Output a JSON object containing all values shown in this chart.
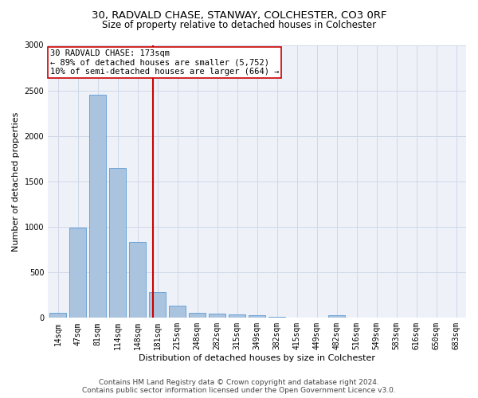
{
  "title_line1": "30, RADVALD CHASE, STANWAY, COLCHESTER, CO3 0RF",
  "title_line2": "Size of property relative to detached houses in Colchester",
  "xlabel": "Distribution of detached houses by size in Colchester",
  "ylabel": "Number of detached properties",
  "categories": [
    "14sqm",
    "47sqm",
    "81sqm",
    "114sqm",
    "148sqm",
    "181sqm",
    "215sqm",
    "248sqm",
    "282sqm",
    "315sqm",
    "349sqm",
    "382sqm",
    "415sqm",
    "449sqm",
    "482sqm",
    "516sqm",
    "549sqm",
    "583sqm",
    "616sqm",
    "650sqm",
    "683sqm"
  ],
  "values": [
    55,
    990,
    2450,
    1650,
    830,
    280,
    135,
    55,
    50,
    40,
    25,
    10,
    5,
    0,
    30,
    0,
    0,
    0,
    0,
    0,
    0
  ],
  "bar_color": "#aac4e0",
  "bar_edge_color": "#5b9bd5",
  "vline_color": "#cc0000",
  "annotation_text": "30 RADVALD CHASE: 173sqm\n← 89% of detached houses are smaller (5,752)\n10% of semi-detached houses are larger (664) →",
  "annotation_box_color": "#cc0000",
  "ylim": [
    0,
    3000
  ],
  "yticks": [
    0,
    500,
    1000,
    1500,
    2000,
    2500,
    3000
  ],
  "grid_color": "#d0d8e8",
  "bg_color": "#eef2f8",
  "footer_line1": "Contains HM Land Registry data © Crown copyright and database right 2024.",
  "footer_line2": "Contains public sector information licensed under the Open Government Licence v3.0.",
  "title_fontsize": 9.5,
  "subtitle_fontsize": 8.5,
  "xlabel_fontsize": 8,
  "ylabel_fontsize": 8,
  "tick_fontsize": 7,
  "annotation_fontsize": 7.5,
  "footer_fontsize": 6.5
}
